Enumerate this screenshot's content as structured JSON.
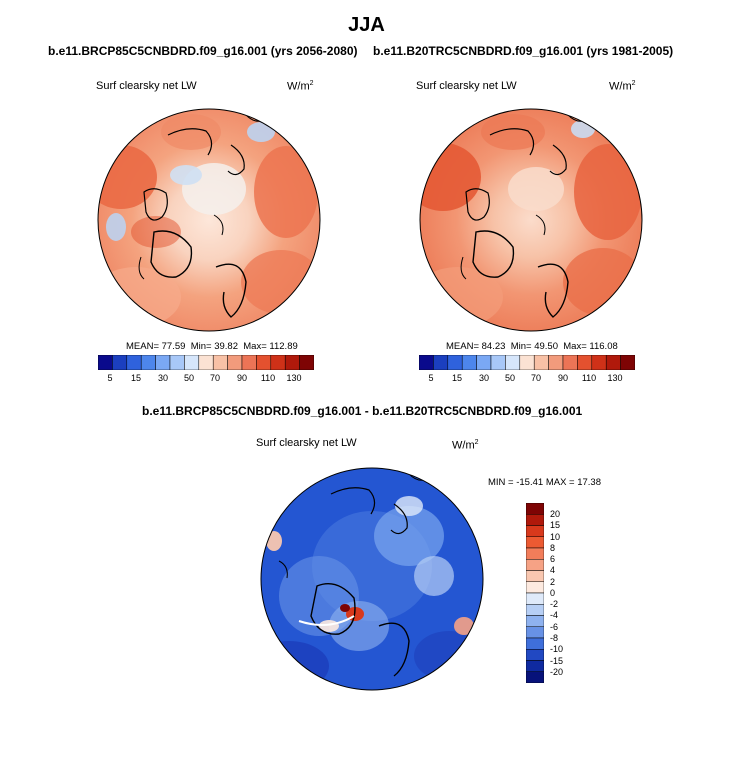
{
  "main_title": "JJA",
  "chart_data": [
    {
      "type": "heatmap",
      "projection": "polar stereographic (north pole)",
      "title": "b.e11.BRCP85C5CNBDRD.f09_g16.001 (yrs 2056-2080)",
      "variable": "Surf clearsky net LW",
      "units": "W/m",
      "units_exp": "2",
      "stats": {
        "mean_label": "MEAN=",
        "mean": "77.59",
        "min_label": "Min=",
        "min": "39.82",
        "max_label": "Max=",
        "max": "112.89"
      },
      "colorbar": {
        "orientation": "horizontal",
        "tick_labels": [
          "5",
          "15",
          "30",
          "50",
          "70",
          "90",
          "110",
          "130"
        ],
        "colors": [
          "#0a0a8c",
          "#1b3fbf",
          "#2f62dd",
          "#4d86ec",
          "#7aa8f4",
          "#a8c8f8",
          "#d6e6fb",
          "#fbe2d3",
          "#f8c1a6",
          "#f29b7c",
          "#ec7456",
          "#e4512f",
          "#cf3118",
          "#b0190b",
          "#7e0404"
        ]
      }
    },
    {
      "type": "heatmap",
      "projection": "polar stereographic (north pole)",
      "title": "b.e11.B20TRC5CNBDRD.f09_g16.001 (yrs 1981-2005)",
      "variable": "Surf clearsky net LW",
      "units": "W/m",
      "units_exp": "2",
      "stats": {
        "mean_label": "MEAN=",
        "mean": "84.23",
        "min_label": "Min=",
        "min": "49.50",
        "max_label": "Max=",
        "max": "116.08"
      },
      "colorbar": {
        "orientation": "horizontal",
        "tick_labels": [
          "5",
          "15",
          "30",
          "50",
          "70",
          "90",
          "110",
          "130"
        ],
        "colors": [
          "#0a0a8c",
          "#1b3fbf",
          "#2f62dd",
          "#4d86ec",
          "#7aa8f4",
          "#a8c8f8",
          "#d6e6fb",
          "#fbe2d3",
          "#f8c1a6",
          "#f29b7c",
          "#ec7456",
          "#e4512f",
          "#cf3118",
          "#b0190b",
          "#7e0404"
        ]
      }
    },
    {
      "type": "heatmap",
      "projection": "polar stereographic (north pole)",
      "title": "b.e11.BRCP85C5CNBDRD.f09_g16.001 - b.e11.B20TRC5CNBDRD.f09_g16.001",
      "variable": "Surf clearsky net LW",
      "units": "W/m",
      "units_exp": "2",
      "stats_text": "MIN = -15.41 MAX =  17.38",
      "colorbar": {
        "orientation": "vertical",
        "tick_labels": [
          "20",
          "15",
          "10",
          "8",
          "6",
          "4",
          "2",
          "0",
          "-2",
          "-4",
          "-6",
          "-8",
          "-10",
          "-15",
          "-20"
        ],
        "colors": [
          "#7e0404",
          "#b0190b",
          "#d8391c",
          "#ec5a32",
          "#f27d5a",
          "#f6a285",
          "#f9c7b0",
          "#fdeae0",
          "#dfeafa",
          "#b7cff5",
          "#8fb2ef",
          "#6892e6",
          "#3f6fdb",
          "#2148c2",
          "#0f2aa0",
          "#07127a"
        ]
      }
    }
  ]
}
